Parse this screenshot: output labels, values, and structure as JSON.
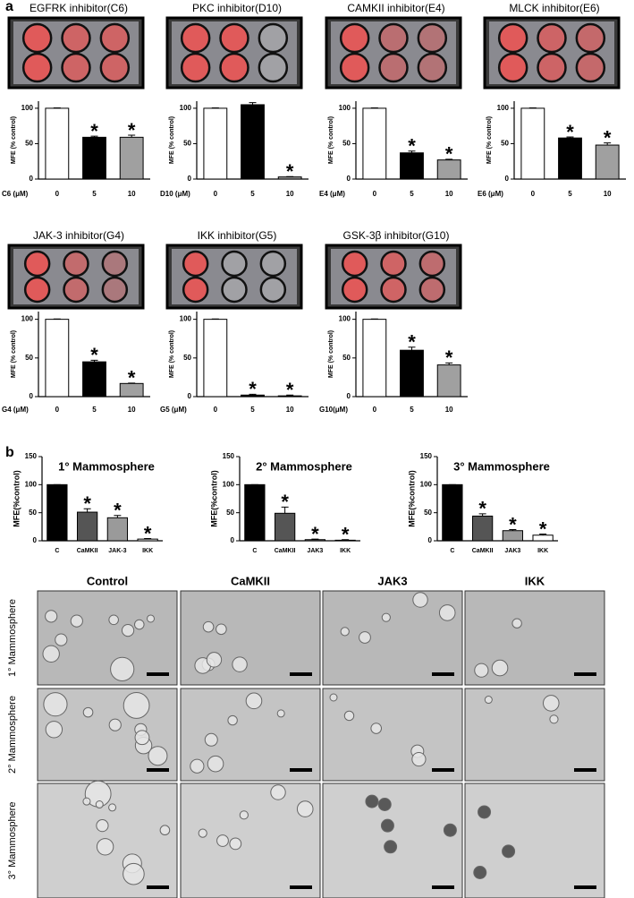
{
  "panel_labels": [
    "a",
    "b"
  ],
  "chart_data": [
    {
      "type": "bar",
      "title": "EGFRK inhibitor(C6)",
      "ylabel": "MFE (% control)",
      "xlabel": "C6 (μM)",
      "categories": [
        "0",
        "5",
        "10"
      ],
      "values": [
        100,
        59,
        59
      ],
      "errors": [
        0.5,
        1.5,
        3
      ],
      "colors": [
        "#ffffff",
        "#000000",
        "#a0a0a0"
      ],
      "annotations": [
        null,
        "*",
        "*"
      ],
      "ylim": [
        0,
        110
      ],
      "yticks": [
        0,
        50,
        100
      ]
    },
    {
      "type": "bar",
      "title": "PKC inhibitor(D10)",
      "ylabel": "MFE (% control)",
      "xlabel": "D10 (μM)",
      "categories": [
        "0",
        "5",
        "10"
      ],
      "values": [
        100,
        105,
        3
      ],
      "errors": [
        0.5,
        3,
        0.5
      ],
      "colors": [
        "#ffffff",
        "#000000",
        "#a0a0a0"
      ],
      "annotations": [
        null,
        null,
        "*"
      ],
      "ylim": [
        0,
        110
      ],
      "yticks": [
        0,
        50,
        100
      ]
    },
    {
      "type": "bar",
      "title": "CAMKII inhibitor(E4)",
      "ylabel": "MFE (% control)",
      "xlabel": "E4 (μM)",
      "categories": [
        "0",
        "5",
        "10"
      ],
      "values": [
        100,
        37,
        27
      ],
      "errors": [
        0.5,
        2.5,
        1
      ],
      "colors": [
        "#ffffff",
        "#000000",
        "#a0a0a0"
      ],
      "annotations": [
        null,
        "*",
        "*"
      ],
      "ylim": [
        0,
        110
      ],
      "yticks": [
        0,
        50,
        100
      ]
    },
    {
      "type": "bar",
      "title": "MLCK inhibitor(E6)",
      "ylabel": "MFE (% control)",
      "xlabel": "E6 (μM)",
      "categories": [
        "0",
        "5",
        "10"
      ],
      "values": [
        100,
        58,
        48
      ],
      "errors": [
        0.5,
        1.5,
        3
      ],
      "colors": [
        "#ffffff",
        "#000000",
        "#a0a0a0"
      ],
      "annotations": [
        null,
        "*",
        "*"
      ],
      "ylim": [
        0,
        110
      ],
      "yticks": [
        0,
        50,
        100
      ]
    },
    {
      "type": "bar",
      "title": "JAK-3 inhibitor(G4)",
      "ylabel": "MFE (% control)",
      "xlabel": "G4 (μM)",
      "categories": [
        "0",
        "5",
        "10"
      ],
      "values": [
        100,
        45,
        17
      ],
      "errors": [
        0.5,
        2,
        0.5
      ],
      "colors": [
        "#ffffff",
        "#000000",
        "#a0a0a0"
      ],
      "annotations": [
        null,
        "*",
        "*"
      ],
      "ylim": [
        0,
        110
      ],
      "yticks": [
        0,
        50,
        100
      ]
    },
    {
      "type": "bar",
      "title": "IKK inhibitor(G5)",
      "ylabel": "MFE (% control)",
      "xlabel": "G5 (μM)",
      "categories": [
        "0",
        "5",
        "10"
      ],
      "values": [
        100,
        2,
        1
      ],
      "errors": [
        0.5,
        1,
        1
      ],
      "colors": [
        "#ffffff",
        "#000000",
        "#a0a0a0"
      ],
      "annotations": [
        null,
        "*",
        "*"
      ],
      "ylim": [
        0,
        110
      ],
      "yticks": [
        0,
        50,
        100
      ]
    },
    {
      "type": "bar",
      "title": "GSK-3β inhibitor(G10)",
      "ylabel": "MFE (% control)",
      "xlabel": "G10(μM)",
      "categories": [
        "0",
        "5",
        "10"
      ],
      "values": [
        100,
        60,
        41
      ],
      "errors": [
        0.5,
        4,
        2.5
      ],
      "colors": [
        "#ffffff",
        "#000000",
        "#a0a0a0"
      ],
      "annotations": [
        null,
        "*",
        "*"
      ],
      "ylim": [
        0,
        110
      ],
      "yticks": [
        0,
        50,
        100
      ]
    },
    {
      "type": "bar",
      "title": "1° Mammosphere",
      "ylabel": "MFE(%control)",
      "categories": [
        "C",
        "CaMKII",
        "JAK-3",
        "IKK"
      ],
      "values": [
        100,
        51,
        41,
        3
      ],
      "errors": [
        0,
        6,
        4,
        1
      ],
      "colors": [
        "#000000",
        "#555555",
        "#9a9a9a",
        "#ffffff"
      ],
      "annotations": [
        null,
        "*",
        "*",
        "*"
      ],
      "ylim": [
        0,
        150
      ],
      "yticks": [
        0,
        50,
        100,
        150
      ]
    },
    {
      "type": "bar",
      "title": "2° Mammosphere",
      "ylabel": "MFE(%control)",
      "categories": [
        "C",
        "CaMKII",
        "JAK3",
        "IKK"
      ],
      "values": [
        100,
        49,
        2,
        1
      ],
      "errors": [
        0,
        11,
        1,
        1
      ],
      "colors": [
        "#000000",
        "#555555",
        "#9a9a9a",
        "#ffffff"
      ],
      "annotations": [
        null,
        "*",
        "*",
        "*"
      ],
      "ylim": [
        0,
        150
      ],
      "yticks": [
        0,
        50,
        100,
        150
      ]
    },
    {
      "type": "bar",
      "title": "3° Mammosphere",
      "ylabel": "MFE(%control)",
      "categories": [
        "C",
        "CaMKII",
        "JAK3",
        "IKK"
      ],
      "values": [
        100,
        44,
        18,
        10
      ],
      "errors": [
        0,
        4,
        2,
        2
      ],
      "colors": [
        "#000000",
        "#555555",
        "#9a9a9a",
        "#ffffff"
      ],
      "annotations": [
        null,
        "*",
        "*",
        "*"
      ],
      "ylim": [
        0,
        150
      ],
      "yticks": [
        0,
        50,
        100,
        150
      ]
    }
  ],
  "micrographs": {
    "columns": [
      "Control",
      "CaMKII",
      "JAK3",
      "IKK"
    ],
    "rows": [
      "1° Mammosphere",
      "2° Mammosphere",
      "3° Mammosphere"
    ]
  }
}
